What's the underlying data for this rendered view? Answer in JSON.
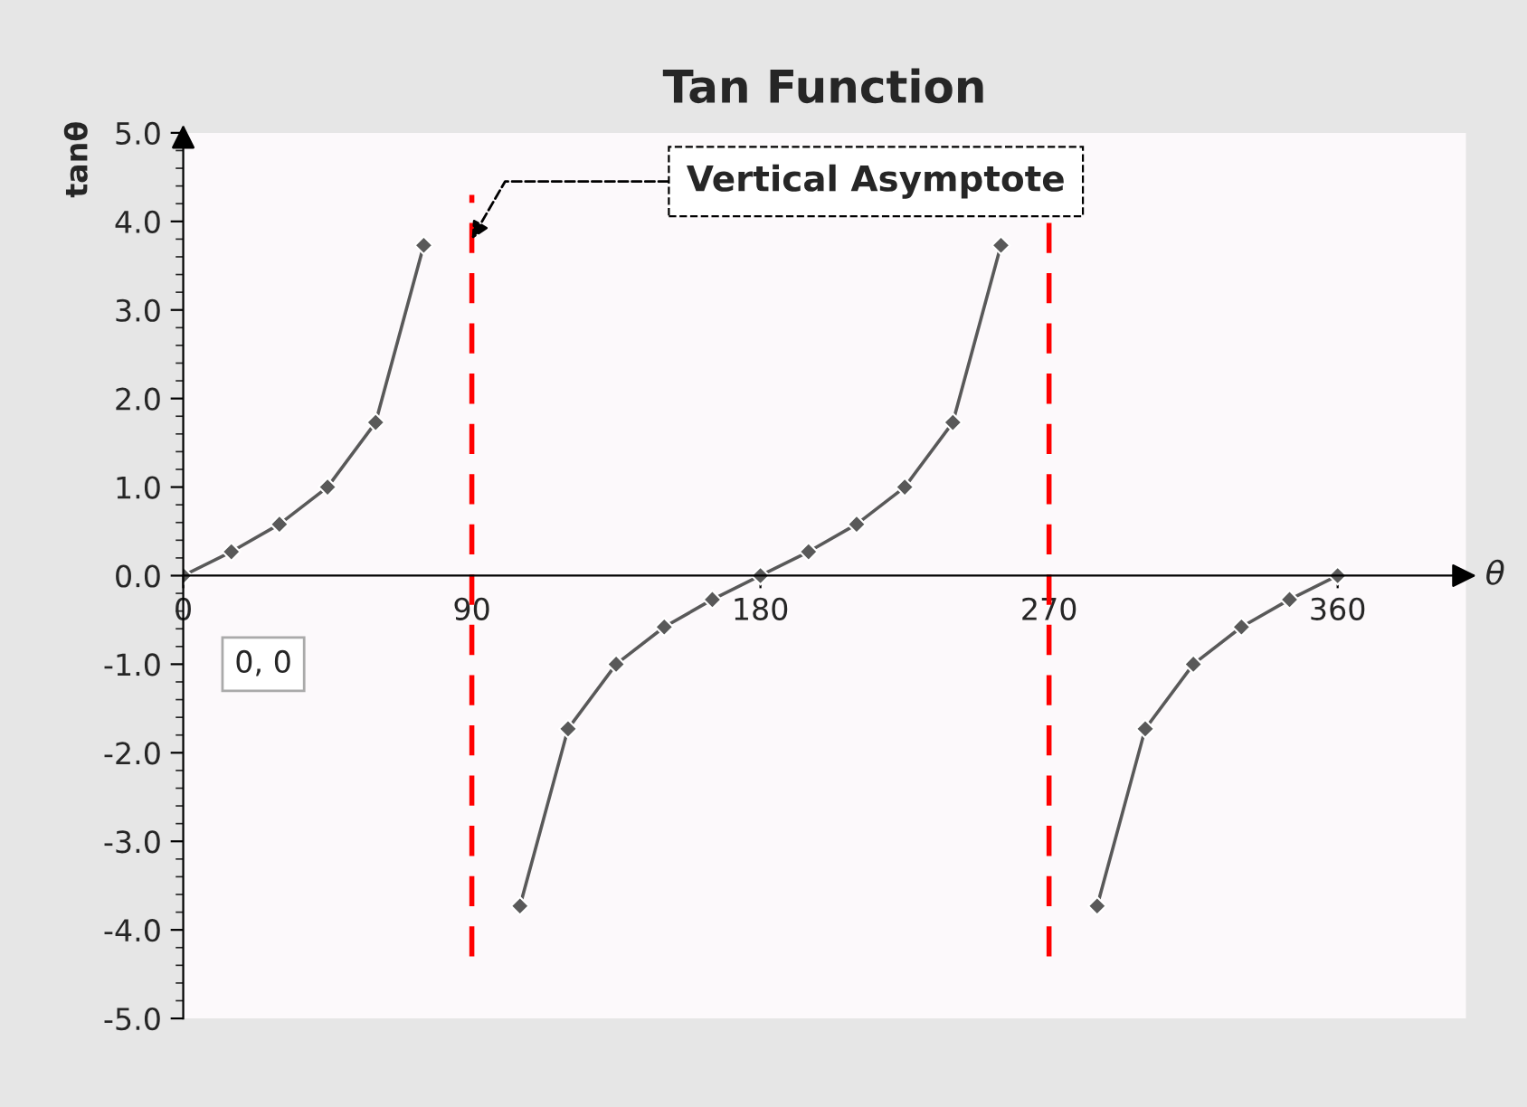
{
  "chart_data": {
    "type": "line",
    "title": "Tan Function",
    "xlabel": "θ",
    "ylabel": "tanθ",
    "x": [
      0,
      15,
      30,
      45,
      60,
      75,
      90,
      105,
      120,
      135,
      150,
      165,
      180,
      195,
      210,
      225,
      240,
      255,
      270,
      285,
      300,
      315,
      330,
      345,
      360
    ],
    "series": [
      {
        "color": "#595959",
        "values": [
          0,
          0.27,
          0.58,
          1.0,
          1.73,
          3.73,
          null,
          -3.73,
          -1.73,
          -1.0,
          -0.58,
          -0.27,
          0,
          0.27,
          0.58,
          1.0,
          1.73,
          3.73,
          null,
          -3.73,
          -1.73,
          -1.0,
          -0.58,
          -0.27,
          0
        ]
      }
    ],
    "marker": "diamond",
    "line_style": "solid",
    "grid": false,
    "xlim": [
      0,
      400
    ],
    "xticks": [
      0,
      90,
      180,
      270,
      360
    ],
    "ylim": [
      -5,
      5
    ],
    "yticks": [
      {
        "value": -5,
        "label": "-5.0"
      },
      {
        "value": -4,
        "label": "-4.0"
      },
      {
        "value": -3,
        "label": "-3.0"
      },
      {
        "value": -2,
        "label": "-2.0"
      },
      {
        "value": -1,
        "label": "-1.0"
      },
      {
        "value": 0,
        "label": "0.0"
      },
      {
        "value": 1,
        "label": "1.0"
      },
      {
        "value": 2,
        "label": "2.0"
      },
      {
        "value": 3,
        "label": "3.0"
      },
      {
        "value": 4,
        "label": "4.0"
      },
      {
        "value": 5,
        "label": "5.0"
      }
    ],
    "ref_lines": [
      {
        "axis": "x",
        "value": 90,
        "color": "#ff0000",
        "line_style": "dashed"
      },
      {
        "axis": "x",
        "value": 270,
        "color": "#ff0000",
        "line_style": "dashed"
      }
    ],
    "annotations": [
      {
        "text": "Vertical Asymptote",
        "x": 90,
        "y": 3.8
      },
      "0, 0"
    ]
  }
}
